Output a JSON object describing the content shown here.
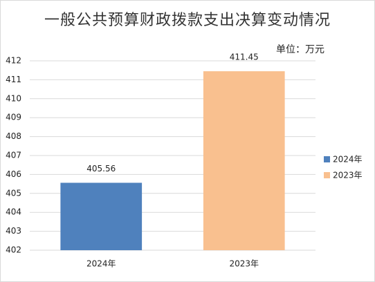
{
  "chart_data": {
    "type": "bar",
    "title": "一般公共预算财政拨款支出决算变动情况",
    "unit_label": "单位：万元",
    "categories": [
      "2024年",
      "2023年"
    ],
    "values": [
      405.56,
      411.45
    ],
    "colors": [
      "#4f81bd",
      "#f9c08f"
    ],
    "ylim": [
      402,
      412
    ],
    "yticks": [
      402,
      403,
      404,
      405,
      406,
      407,
      408,
      409,
      410,
      411,
      412
    ],
    "grid": true,
    "legend": "right"
  }
}
